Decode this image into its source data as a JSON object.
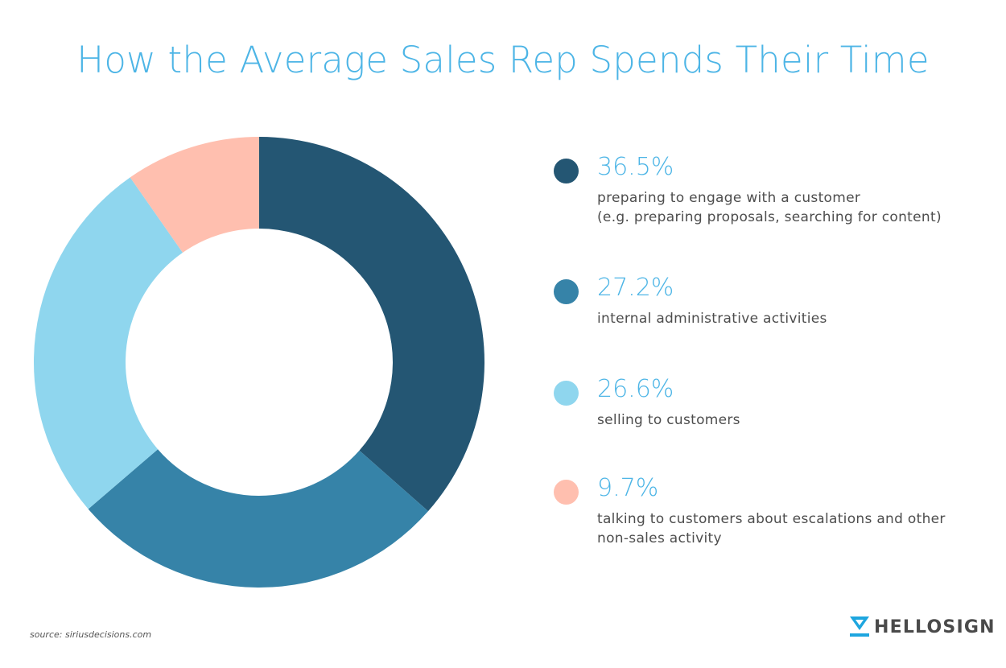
{
  "title": "How the Average Sales Rep Spends Their Time",
  "chart_data": {
    "type": "pie",
    "variant": "donut",
    "title": "How the Average Sales Rep Spends Their Time",
    "start": "top",
    "direction": "clockwise",
    "legend_position": "right",
    "slices": [
      {
        "value": 36.5,
        "label": "36.5%",
        "description": [
          "preparing to engage with a customer",
          "(e.g. preparing proposals, searching for content)"
        ],
        "color": "#245673"
      },
      {
        "value": 27.2,
        "label": "27.2%",
        "description": [
          "internal administrative activities"
        ],
        "color": "#3683a8"
      },
      {
        "value": 26.6,
        "label": "26.6%",
        "description": [
          "selling to customers"
        ],
        "color": "#8fd6ee"
      },
      {
        "value": 9.7,
        "label": "9.7%",
        "description": [
          "talking to customers about escalations and other",
          "non-sales activity"
        ],
        "color": "#ffbfaf"
      }
    ]
  },
  "source": "source: siriusdecisions.com",
  "logo": {
    "text": "HELLOSIGN",
    "icon": "hellosign-logo-icon",
    "icon_color": "#1ea6df"
  },
  "colors": {
    "title": "#4db5e6",
    "body_text": "#4d4d4d"
  }
}
